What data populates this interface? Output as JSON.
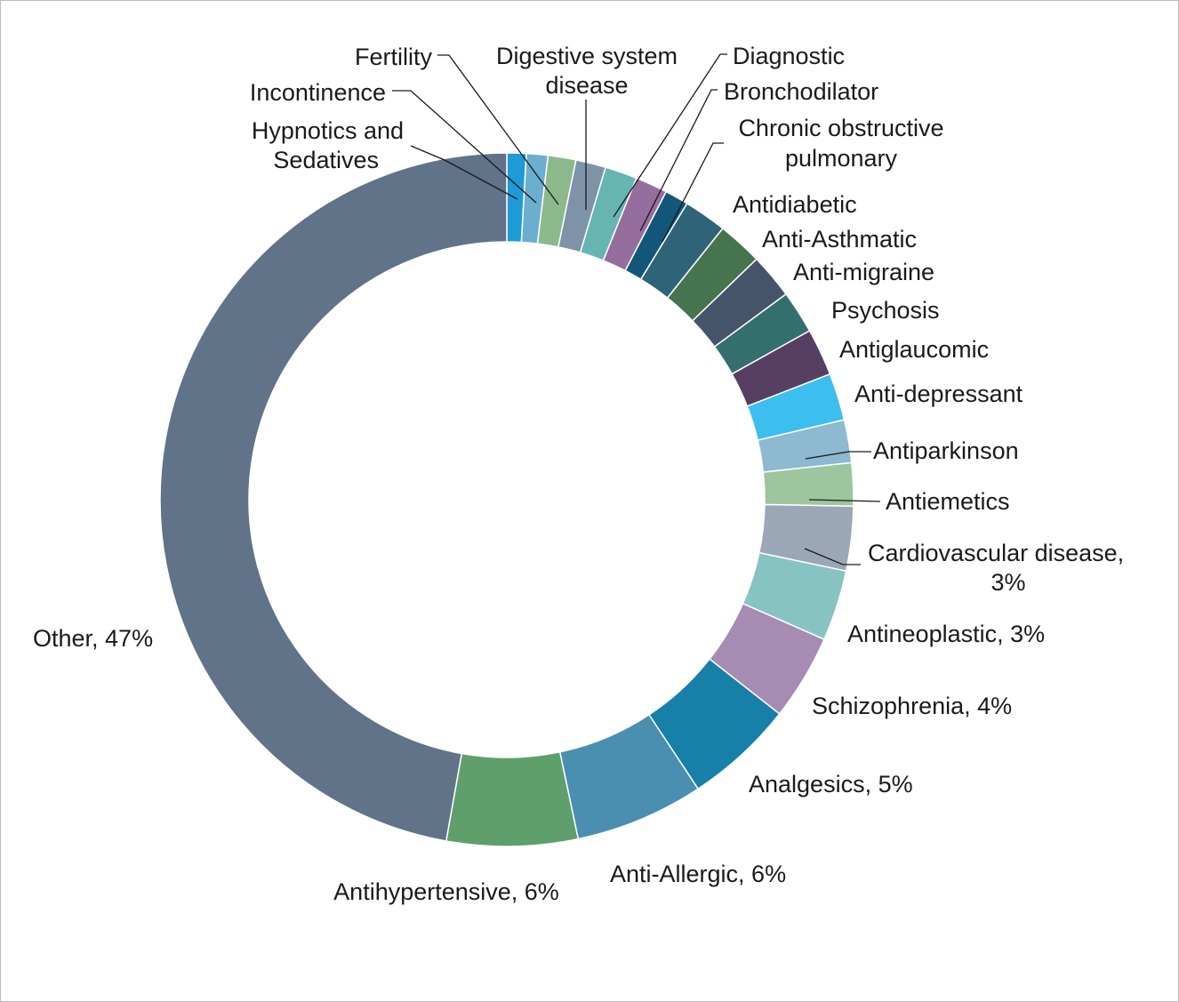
{
  "chart_data": {
    "type": "pie",
    "style": "donut",
    "title": "",
    "start": "top, clockwise",
    "slices": [
      {
        "label": "Hypnotics and Sedatives",
        "value": 0.9,
        "color": "#1E9AD6",
        "value_label": ""
      },
      {
        "label": "Incontinence",
        "value": 1.0,
        "color": "#6BAED0",
        "value_label": ""
      },
      {
        "label": "Fertility",
        "value": 1.3,
        "color": "#8CB98C",
        "value_label": ""
      },
      {
        "label": "Digestive system disease",
        "value": 1.4,
        "color": "#7F93A8",
        "value_label": ""
      },
      {
        "label": "Diagnostic",
        "value": 1.5,
        "color": "#66B5B3",
        "value_label": ""
      },
      {
        "label": "Bronchodilator",
        "value": 1.5,
        "color": "#966E9E",
        "value_label": ""
      },
      {
        "label": "Chronic obstructive pulmonary",
        "value": 1.1,
        "color": "#12577A",
        "value_label": ""
      },
      {
        "label": "Antidiabetic",
        "value": 2.0,
        "color": "#2F6478",
        "value_label": ""
      },
      {
        "label": "Anti-Asthmatic",
        "value": 2.1,
        "color": "#45744E",
        "value_label": ""
      },
      {
        "label": "Anti-migraine",
        "value": 2.1,
        "color": "#46546A",
        "value_label": ""
      },
      {
        "label": "Psychosis",
        "value": 2.0,
        "color": "#336F6C",
        "value_label": ""
      },
      {
        "label": "Antiglaucomic",
        "value": 2.2,
        "color": "#563F62",
        "value_label": ""
      },
      {
        "label": "Anti-depressant",
        "value": 2.2,
        "color": "#3CBFEF",
        "value_label": ""
      },
      {
        "label": "Antiparkinson",
        "value": 2.0,
        "color": "#8DB9D1",
        "value_label": ""
      },
      {
        "label": "Antiemetics",
        "value": 2.0,
        "color": "#9DC69E",
        "value_label": ""
      },
      {
        "label": "Cardiovascular disease",
        "value": 3.0,
        "color": "#9BA7B6",
        "value_label": "3%"
      },
      {
        "label": "Antineoplastic",
        "value": 3.3,
        "color": "#88C3C4",
        "value_label": "3%"
      },
      {
        "label": "Schizophrenia",
        "value": 4.0,
        "color": "#A68BB3",
        "value_label": "4%"
      },
      {
        "label": "Analgesics",
        "value": 5.1,
        "color": "#1780A8",
        "value_label": "5%"
      },
      {
        "label": "Anti-Allergic",
        "value": 6.0,
        "color": "#4A8FB0",
        "value_label": "6%"
      },
      {
        "label": "Antihypertensive",
        "value": 6.1,
        "color": "#5F9F6B",
        "value_label": "6%"
      },
      {
        "label": "Other",
        "value": 47.2,
        "color": "#607388",
        "value_label": "47%"
      }
    ],
    "legend": "none",
    "label_lines": [
      "Hypnotics and",
      "Sedatives",
      "Incontinence",
      "Fertility",
      "Digestive system",
      "disease",
      "Diagnostic",
      "Bronchodilator",
      "Chronic obstructive",
      "pulmonary",
      "Antidiabetic",
      "Anti-Asthmatic",
      "Anti-migraine",
      "Psychosis",
      "Antiglaucomic",
      "Anti-depressant",
      "Antiparkinson",
      "Antiemetics",
      "Cardiovascular disease,",
      "3%",
      "Antineoplastic, 3%",
      "Schizophrenia, 4%",
      "Analgesics, 5%",
      "Anti-Allergic, 6%",
      "Antihypertensive, 6%",
      "Other, 47%"
    ]
  }
}
